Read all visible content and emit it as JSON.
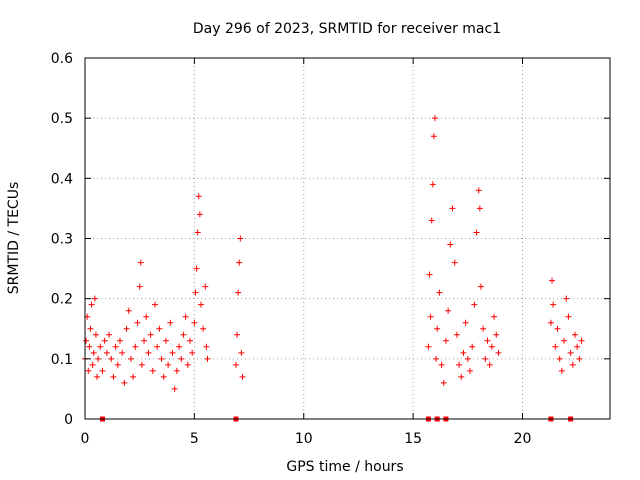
{
  "chart_data": {
    "type": "scatter",
    "title": "Day 296 of 2023, SRMTID for receiver mac1",
    "xlabel": "GPS time / hours",
    "ylabel": "SRMTID / TECUs",
    "xlim": [
      0,
      24
    ],
    "ylim": [
      0,
      0.6
    ],
    "xticks": [
      {
        "value": 0,
        "label": "0"
      },
      {
        "value": 5,
        "label": "5"
      },
      {
        "value": 10,
        "label": "10"
      },
      {
        "value": 15,
        "label": "15"
      },
      {
        "value": 20,
        "label": "20"
      }
    ],
    "yticks": [
      {
        "value": 0,
        "label": "0"
      },
      {
        "value": 0.1,
        "label": "0.1"
      },
      {
        "value": 0.2,
        "label": "0.2"
      },
      {
        "value": 0.3,
        "label": "0.3"
      },
      {
        "value": 0.4,
        "label": "0.4"
      },
      {
        "value": 0.5,
        "label": "0.5"
      },
      {
        "value": 0.6,
        "label": "0.6"
      }
    ],
    "grid": true,
    "series": [
      {
        "name": "SRMTID",
        "color": "#ff0000",
        "marker": "plus",
        "points": [
          [
            0.0,
            0.1
          ],
          [
            0.05,
            0.13
          ],
          [
            0.1,
            0.17
          ],
          [
            0.15,
            0.08
          ],
          [
            0.2,
            0.12
          ],
          [
            0.25,
            0.15
          ],
          [
            0.3,
            0.19
          ],
          [
            0.35,
            0.09
          ],
          [
            0.4,
            0.11
          ],
          [
            0.45,
            0.2
          ],
          [
            0.5,
            0.14
          ],
          [
            0.55,
            0.07
          ],
          [
            0.6,
            0.1
          ],
          [
            0.7,
            0.12
          ],
          [
            0.8,
            0.08
          ],
          [
            0.9,
            0.13
          ],
          [
            1.0,
            0.11
          ],
          [
            1.1,
            0.14
          ],
          [
            1.2,
            0.1
          ],
          [
            1.3,
            0.07
          ],
          [
            1.4,
            0.12
          ],
          [
            1.5,
            0.09
          ],
          [
            1.6,
            0.13
          ],
          [
            1.7,
            0.11
          ],
          [
            1.8,
            0.06
          ],
          [
            1.9,
            0.15
          ],
          [
            2.0,
            0.18
          ],
          [
            2.1,
            0.1
          ],
          [
            2.2,
            0.07
          ],
          [
            2.3,
            0.12
          ],
          [
            2.4,
            0.16
          ],
          [
            2.5,
            0.22
          ],
          [
            2.55,
            0.26
          ],
          [
            2.6,
            0.09
          ],
          [
            2.7,
            0.13
          ],
          [
            2.8,
            0.17
          ],
          [
            2.9,
            0.11
          ],
          [
            3.0,
            0.14
          ],
          [
            3.1,
            0.08
          ],
          [
            3.2,
            0.19
          ],
          [
            3.3,
            0.12
          ],
          [
            3.4,
            0.15
          ],
          [
            3.5,
            0.1
          ],
          [
            3.6,
            0.07
          ],
          [
            3.7,
            0.13
          ],
          [
            3.8,
            0.09
          ],
          [
            3.9,
            0.16
          ],
          [
            4.0,
            0.11
          ],
          [
            4.1,
            0.05
          ],
          [
            4.2,
            0.08
          ],
          [
            4.3,
            0.12
          ],
          [
            4.4,
            0.1
          ],
          [
            4.5,
            0.14
          ],
          [
            4.6,
            0.17
          ],
          [
            4.7,
            0.09
          ],
          [
            4.8,
            0.13
          ],
          [
            4.9,
            0.11
          ],
          [
            5.0,
            0.16
          ],
          [
            5.05,
            0.21
          ],
          [
            5.1,
            0.25
          ],
          [
            5.15,
            0.31
          ],
          [
            5.2,
            0.37
          ],
          [
            5.25,
            0.34
          ],
          [
            5.3,
            0.19
          ],
          [
            5.4,
            0.15
          ],
          [
            5.5,
            0.22
          ],
          [
            5.55,
            0.12
          ],
          [
            5.6,
            0.1
          ],
          [
            6.9,
            0.09
          ],
          [
            6.95,
            0.14
          ],
          [
            7.0,
            0.21
          ],
          [
            7.05,
            0.26
          ],
          [
            7.1,
            0.3
          ],
          [
            7.15,
            0.11
          ],
          [
            7.2,
            0.07
          ],
          [
            15.7,
            0.12
          ],
          [
            15.75,
            0.24
          ],
          [
            15.8,
            0.17
          ],
          [
            15.85,
            0.33
          ],
          [
            15.9,
            0.39
          ],
          [
            15.95,
            0.47
          ],
          [
            16.0,
            0.5
          ],
          [
            16.05,
            0.1
          ],
          [
            16.1,
            0.15
          ],
          [
            16.2,
            0.21
          ],
          [
            16.3,
            0.09
          ],
          [
            16.4,
            0.06
          ],
          [
            16.5,
            0.13
          ],
          [
            16.6,
            0.18
          ],
          [
            16.7,
            0.29
          ],
          [
            16.8,
            0.35
          ],
          [
            16.9,
            0.26
          ],
          [
            17.0,
            0.14
          ],
          [
            17.1,
            0.09
          ],
          [
            17.2,
            0.07
          ],
          [
            17.3,
            0.11
          ],
          [
            17.4,
            0.16
          ],
          [
            17.5,
            0.1
          ],
          [
            17.6,
            0.08
          ],
          [
            17.7,
            0.12
          ],
          [
            17.8,
            0.19
          ],
          [
            17.9,
            0.31
          ],
          [
            18.0,
            0.38
          ],
          [
            18.05,
            0.35
          ],
          [
            18.1,
            0.22
          ],
          [
            18.2,
            0.15
          ],
          [
            18.3,
            0.1
          ],
          [
            18.4,
            0.13
          ],
          [
            18.5,
            0.09
          ],
          [
            18.6,
            0.12
          ],
          [
            18.7,
            0.17
          ],
          [
            18.8,
            0.14
          ],
          [
            18.9,
            0.11
          ],
          [
            21.3,
            0.16
          ],
          [
            21.35,
            0.23
          ],
          [
            21.4,
            0.19
          ],
          [
            21.5,
            0.12
          ],
          [
            21.6,
            0.15
          ],
          [
            21.7,
            0.1
          ],
          [
            21.8,
            0.08
          ],
          [
            21.9,
            0.13
          ],
          [
            22.0,
            0.2
          ],
          [
            22.1,
            0.17
          ],
          [
            22.2,
            0.11
          ],
          [
            22.3,
            0.09
          ],
          [
            22.4,
            0.14
          ],
          [
            22.5,
            0.12
          ],
          [
            22.6,
            0.1
          ],
          [
            22.7,
            0.13
          ]
        ]
      }
    ],
    "zero_markers": [
      0.8,
      6.9,
      15.7,
      16.1,
      16.5,
      21.3,
      22.2
    ]
  }
}
